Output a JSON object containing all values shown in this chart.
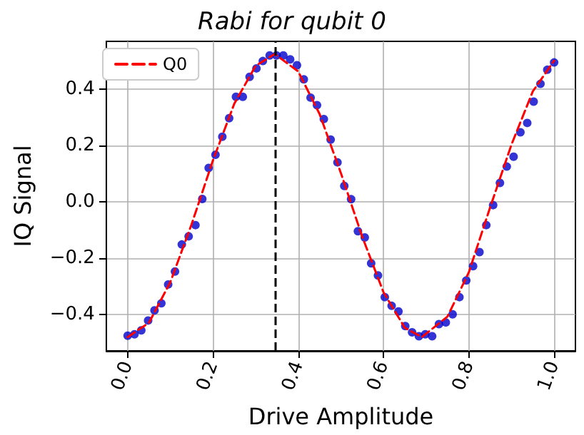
{
  "chart_data": {
    "type": "scatter",
    "title": "Rabi for qubit 0",
    "xlabel": "Drive Amplitude",
    "ylabel": "IQ Signal",
    "xlim": [
      -0.05,
      1.05
    ],
    "ylim": [
      -0.53,
      0.57
    ],
    "xticks": [
      {
        "value": 0,
        "label": "0.0"
      },
      {
        "value": 0.2,
        "label": "0.2"
      },
      {
        "value": 0.4,
        "label": "0.4"
      },
      {
        "value": 0.6,
        "label": "0.6"
      },
      {
        "value": 0.8,
        "label": "0.8"
      },
      {
        "value": 1,
        "label": "1.0"
      }
    ],
    "yticks": [
      {
        "value": -0.4,
        "label": "−0.4"
      },
      {
        "value": -0.2,
        "label": "−0.2"
      },
      {
        "value": 0,
        "label": "0.0"
      },
      {
        "value": 0.2,
        "label": "0.2"
      },
      {
        "value": 0.4,
        "label": "0.4"
      }
    ],
    "grid": true,
    "legend": "top left",
    "series": [
      {
        "color": "#0000cc",
        "marker": "circle",
        "x": [
          0,
          0.016,
          0.032,
          0.048,
          0.063,
          0.079,
          0.095,
          0.111,
          0.127,
          0.143,
          0.159,
          0.175,
          0.19,
          0.206,
          0.222,
          0.238,
          0.254,
          0.27,
          0.286,
          0.302,
          0.317,
          0.333,
          0.349,
          0.365,
          0.381,
          0.397,
          0.413,
          0.429,
          0.444,
          0.46,
          0.476,
          0.492,
          0.508,
          0.524,
          0.54,
          0.556,
          0.571,
          0.587,
          0.603,
          0.619,
          0.635,
          0.651,
          0.667,
          0.683,
          0.698,
          0.714,
          0.73,
          0.746,
          0.762,
          0.778,
          0.794,
          0.81,
          0.825,
          0.841,
          0.857,
          0.873,
          0.889,
          0.905,
          0.921,
          0.937,
          0.952,
          0.968,
          0.984,
          1.0
        ],
        "values": [
          -0.476,
          -0.471,
          -0.457,
          -0.422,
          -0.386,
          -0.361,
          -0.294,
          -0.248,
          -0.152,
          -0.123,
          -0.083,
          0.01,
          0.12,
          0.167,
          0.231,
          0.297,
          0.373,
          0.373,
          0.444,
          0.474,
          0.5,
          0.52,
          0.52,
          0.52,
          0.506,
          0.485,
          0.435,
          0.37,
          0.343,
          0.294,
          0.221,
          0.14,
          0.056,
          0.009,
          -0.105,
          -0.127,
          -0.219,
          -0.262,
          -0.339,
          -0.37,
          -0.39,
          -0.442,
          -0.464,
          -0.478,
          -0.471,
          -0.478,
          -0.435,
          -0.429,
          -0.4,
          -0.339,
          -0.28,
          -0.229,
          -0.179,
          -0.083,
          -0.012,
          0.067,
          0.125,
          0.16,
          0.247,
          0.28,
          0.356,
          0.419,
          0.469,
          0.495
        ]
      },
      {
        "type": "line",
        "name": "Q0",
        "color": "#ff0000",
        "line_style": "dashed",
        "marker": "none",
        "x": [
          0,
          0.05,
          0.1,
          0.15,
          0.2,
          0.25,
          0.3,
          0.345,
          0.4,
          0.45,
          0.5,
          0.55,
          0.6,
          0.65,
          0.69,
          0.75,
          0.8,
          0.85,
          0.9,
          0.95,
          1.0
        ],
        "values": [
          -0.481,
          -0.43,
          -0.286,
          -0.08,
          0.147,
          0.348,
          0.483,
          0.525,
          0.463,
          0.312,
          0.102,
          -0.124,
          -0.322,
          -0.448,
          -0.481,
          -0.408,
          -0.251,
          -0.02,
          0.203,
          0.392,
          0.501
        ]
      }
    ],
    "ref_lines": [
      {
        "axis": "x",
        "value": 0.345,
        "color": "#000000",
        "line_style": "dashed"
      }
    ]
  }
}
